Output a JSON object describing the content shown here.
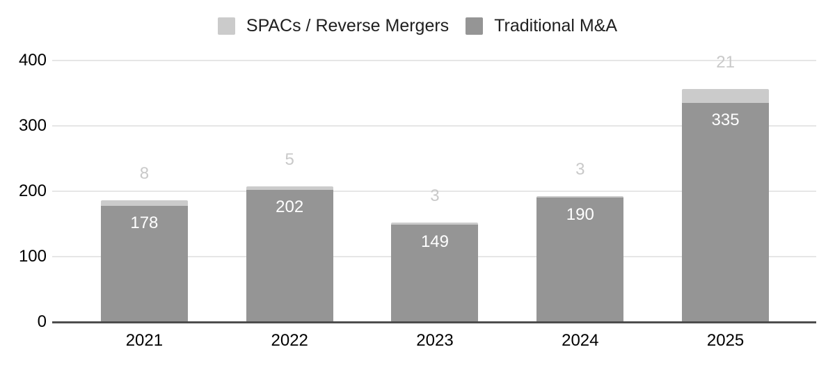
{
  "chart_data": {
    "type": "bar",
    "stacked": true,
    "title": "",
    "xlabel": "",
    "ylabel": "",
    "categories": [
      "2021",
      "2022",
      "2023",
      "2024",
      "2025"
    ],
    "series": [
      {
        "name": "SPACs / Reverse Mergers",
        "color": "#cbcbcb",
        "values": [
          8,
          5,
          3,
          3,
          21
        ],
        "annotation_position": "above",
        "annotation_color": "#c9c9c9"
      },
      {
        "name": "Traditional M&A",
        "color": "#959595",
        "values": [
          178,
          202,
          149,
          190,
          335
        ],
        "annotation_position": "inside",
        "annotation_color": "#ffffff"
      }
    ],
    "totals": [
      186,
      207,
      152,
      193,
      356
    ],
    "ylim": [
      0,
      400
    ],
    "yticks": [
      0,
      100,
      200,
      300,
      400
    ],
    "grid": true,
    "legend_position": "top",
    "colors": {
      "background": "#ffffff",
      "gridline": "#e6e6e6",
      "axis_line": "#4d4d4d",
      "tick_label": "#000000",
      "legend_text": "#202020"
    }
  }
}
